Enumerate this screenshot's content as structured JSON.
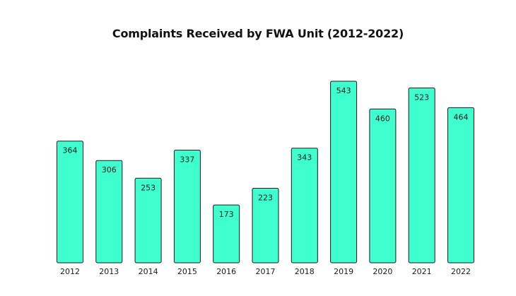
{
  "chart_data": {
    "type": "bar",
    "title": "Complaints Received by FWA Unit (2012-2022)",
    "categories": [
      "2012",
      "2013",
      "2014",
      "2015",
      "2016",
      "2017",
      "2018",
      "2019",
      "2020",
      "2021",
      "2022"
    ],
    "values": [
      364,
      306,
      253,
      337,
      173,
      223,
      343,
      543,
      460,
      523,
      464
    ],
    "ylim": [
      0,
      550
    ],
    "grid": false,
    "legend": "none",
    "bar_color": "#40FFCF",
    "bar_outline_color": "#1a1a1a"
  }
}
